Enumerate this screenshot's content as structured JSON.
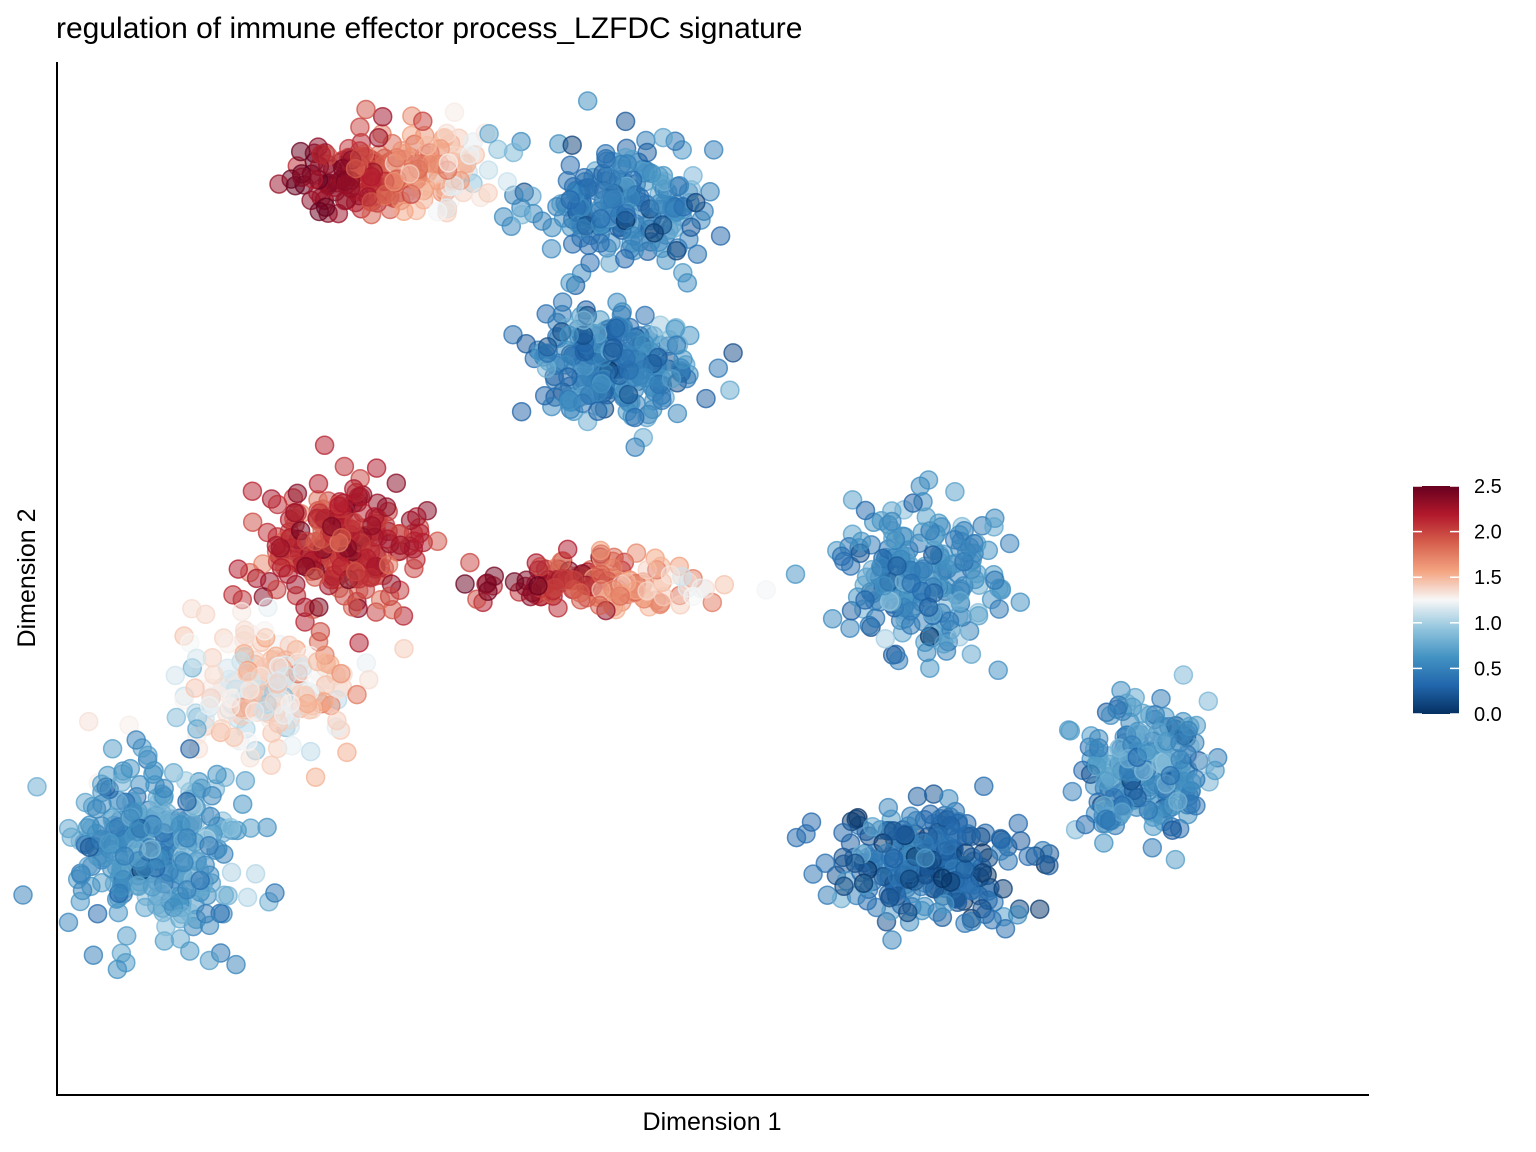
{
  "chart_data": {
    "type": "scatter",
    "title": "regulation of immune effector process_LZFDC signature",
    "xlabel": "Dimension 1",
    "ylabel": "Dimension 2",
    "xlim": [
      -5,
      10
    ],
    "ylim": [
      -7,
      9
    ],
    "grid": false,
    "legend": {
      "position": "right",
      "type": "colorbar",
      "ticks": [
        "2.5",
        "2.0",
        "1.5",
        "1.0",
        "0.5",
        "0.0"
      ],
      "min": 0.0,
      "max": 2.5
    },
    "colorscale": [
      "#053061",
      "#2166ac",
      "#4393c3",
      "#92c5de",
      "#f7f7f7",
      "#f4a582",
      "#d6604d",
      "#b2182b",
      "#67001f"
    ],
    "clusters": [
      {
        "name": "",
        "center": [
          1.5,
          6.8
        ],
        "spread": [
          0.9,
          0.9
        ],
        "n": 220,
        "value_gradient": {
          "x0": 0.0,
          "x1": 2.2,
          "v0": 0.35,
          "v1": 0.55
        }
      },
      {
        "name": "",
        "center": [
          1.4,
          4.3
        ],
        "spread": [
          0.8,
          0.8
        ],
        "n": 260,
        "value_gradient": {
          "x0": 0.5,
          "x1": 2.4,
          "v0": 0.4,
          "v1": 0.55
        }
      },
      {
        "name": "",
        "center": [
          -1.2,
          7.3
        ],
        "spread": [
          1.0,
          0.6
        ],
        "n": 230,
        "value_gradient": {
          "x0": -2.0,
          "x1": 0.3,
          "v0": 2.4,
          "v1": 0.9
        }
      },
      {
        "name": "",
        "center": [
          -1.8,
          1.5
        ],
        "spread": [
          0.8,
          0.9
        ],
        "n": 260,
        "value_gradient": {
          "x0": -2.4,
          "x1": -1.0,
          "v0": 2.1,
          "v1": 2.2
        }
      },
      {
        "name": "",
        "center": [
          -2.6,
          -0.8
        ],
        "spread": [
          0.9,
          0.9
        ],
        "n": 220,
        "value_gradient": {
          "x0": -3.0,
          "x1": -1.6,
          "v0": 1.3,
          "v1": 1.45
        }
      },
      {
        "name": "",
        "center": [
          -3.9,
          -3.2
        ],
        "spread": [
          0.9,
          1.3
        ],
        "n": 320,
        "value_gradient": {
          "x0": -4.6,
          "x1": -2.8,
          "v0": 0.55,
          "v1": 0.75
        }
      },
      {
        "name": "",
        "center": [
          1.2,
          0.9
        ],
        "spread": [
          1.1,
          0.4
        ],
        "n": 160,
        "value_gradient": {
          "x0": 0.3,
          "x1": 2.7,
          "v0": 2.3,
          "v1": 1.2
        }
      },
      {
        "name": "",
        "center": [
          4.9,
          1.0
        ],
        "spread": [
          0.8,
          1.0
        ],
        "n": 220,
        "value_gradient": {
          "x0": 4.0,
          "x1": 6.0,
          "v0": 0.5,
          "v1": 0.6
        }
      },
      {
        "name": "",
        "center": [
          7.4,
          -2.0
        ],
        "spread": [
          0.7,
          0.9
        ],
        "n": 230,
        "value_gradient": {
          "x0": 6.8,
          "x1": 8.0,
          "v0": 0.55,
          "v1": 0.6
        }
      },
      {
        "name": "",
        "center": [
          5.0,
          -3.4
        ],
        "spread": [
          1.0,
          0.8
        ],
        "n": 250,
        "value_gradient": {
          "x0": 4.0,
          "x1": 6.0,
          "v0": 0.35,
          "v1": 0.3
        }
      }
    ]
  }
}
